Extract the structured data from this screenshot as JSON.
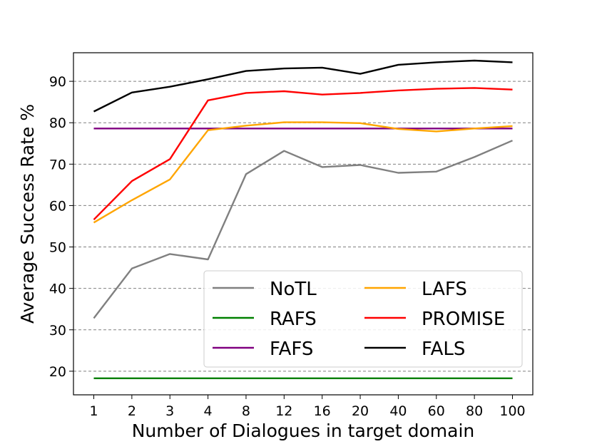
{
  "chart_data": {
    "type": "line",
    "title": "",
    "xlabel": "Number of Dialogues in target domain",
    "ylabel": "Average Success Rate %",
    "categories": [
      "1",
      "2",
      "3",
      "4",
      "8",
      "12",
      "16",
      "20",
      "40",
      "60",
      "80",
      "100"
    ],
    "ylim": [
      14.3,
      96.9
    ],
    "yticks": [
      20,
      30,
      40,
      50,
      60,
      70,
      80,
      90
    ],
    "grid": "horizontal-dashed",
    "legend_position": "bottom-right",
    "series": [
      {
        "name": "NoTL",
        "color": "#808080",
        "values": [
          32.8,
          44.8,
          48.3,
          47.0,
          67.6,
          73.2,
          69.3,
          69.8,
          67.9,
          68.2,
          71.7,
          75.7
        ]
      },
      {
        "name": "RAFS",
        "color": "#008000",
        "values": [
          18.3,
          18.3,
          18.3,
          18.3,
          18.3,
          18.3,
          18.3,
          18.3,
          18.3,
          18.3,
          18.3,
          18.3
        ]
      },
      {
        "name": "FAFS",
        "color": "#800080",
        "values": [
          78.6,
          78.6,
          78.6,
          78.6,
          78.6,
          78.6,
          78.6,
          78.6,
          78.6,
          78.6,
          78.6,
          78.6
        ]
      },
      {
        "name": "LAFS",
        "color": "#ffa500",
        "values": [
          55.9,
          61.3,
          66.3,
          78.2,
          79.3,
          80.1,
          80.1,
          79.9,
          78.5,
          77.9,
          78.6,
          79.2
        ]
      },
      {
        "name": "PROMISE",
        "color": "#ff0000",
        "values": [
          56.6,
          65.9,
          71.2,
          85.4,
          87.2,
          87.6,
          86.8,
          87.2,
          87.8,
          88.2,
          88.4,
          88.0
        ]
      },
      {
        "name": "FALS",
        "color": "#000000",
        "values": [
          82.7,
          87.3,
          88.7,
          90.5,
          92.5,
          93.1,
          93.3,
          91.8,
          94.0,
          94.6,
          95.0,
          94.6
        ]
      }
    ]
  }
}
